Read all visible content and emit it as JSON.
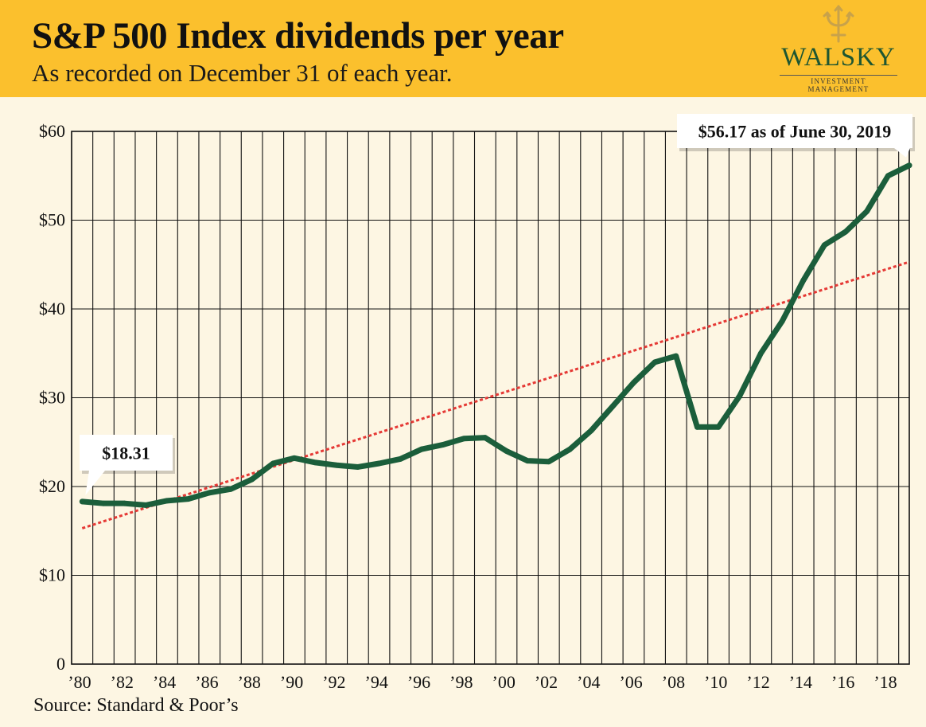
{
  "header": {
    "title": "S&P 500 Index dividends per year",
    "subtitle": "As recorded on December 31 of each year."
  },
  "logo": {
    "name": "WALSKY",
    "tagline": "INVESTMENT MANAGEMENT",
    "icon": "trident-icon"
  },
  "source": "Source: Standard & Poor’s",
  "colors": {
    "header_bg": "#fbc02d",
    "page_bg": "#fdf6e3",
    "line": "#1b5e3b",
    "trend": "#e53935"
  },
  "chart_data": {
    "type": "line",
    "title": "S&P 500 Index dividends per year",
    "subtitle": "As recorded on December 31 of each year.",
    "xlim": [
      1980,
      2019.5
    ],
    "ylim": [
      0,
      60
    ],
    "grid": true,
    "x_tick_values": [
      1980,
      1982,
      1984,
      1986,
      1988,
      1990,
      1992,
      1994,
      1996,
      1998,
      2000,
      2002,
      2004,
      2006,
      2008,
      2010,
      2012,
      2014,
      2016,
      2018
    ],
    "x_tick_labels": [
      "’80",
      "’82",
      "’84",
      "’86",
      "’88",
      "’90",
      "’92",
      "’94",
      "’96",
      "’98",
      "’00",
      "’02",
      "’04",
      "’06",
      "’08",
      "’10",
      "’12",
      "’14",
      "’16",
      "’18"
    ],
    "y_tick_values": [
      0,
      10,
      20,
      30,
      40,
      50,
      60
    ],
    "y_tick_labels": [
      "0",
      "$10",
      "$20",
      "$30",
      "$40",
      "$50",
      "$60"
    ],
    "series": [
      {
        "type": "line",
        "x": [
          1980.5,
          1981.5,
          1982.5,
          1983.5,
          1984.5,
          1985.5,
          1986.5,
          1987.5,
          1988.5,
          1989.5,
          1990.5,
          1991.5,
          1992.5,
          1993.5,
          1994.5,
          1995.5,
          1996.5,
          1997.5,
          1998.5,
          1999.5,
          2000.5,
          2001.5,
          2002.5,
          2003.5,
          2004.5,
          2005.5,
          2006.5,
          2007.5,
          2008.5,
          2009.5,
          2010.5,
          2011.5,
          2012.5,
          2013.5,
          2014.5,
          2015.5,
          2016.5,
          2017.5,
          2018.5,
          2019.5
        ],
        "values": [
          18.31,
          18.1,
          18.1,
          17.9,
          18.4,
          18.6,
          19.3,
          19.7,
          20.8,
          22.6,
          23.2,
          22.7,
          22.4,
          22.2,
          22.6,
          23.1,
          24.2,
          24.7,
          25.4,
          25.5,
          24.0,
          22.9,
          22.8,
          24.2,
          26.3,
          29.0,
          31.7,
          34.0,
          34.7,
          26.7,
          26.7,
          30.2,
          35.0,
          38.6,
          43.2,
          47.2,
          48.7,
          51.0,
          55.0,
          56.17
        ]
      },
      {
        "type": "trend",
        "x": [
          1980.5,
          2019.5
        ],
        "values": [
          15.3,
          45.3
        ]
      }
    ],
    "annotations": [
      {
        "text": "$18.31",
        "x": 1980.5,
        "y": 18.31
      },
      {
        "text": "$56.17 as of June 30, 2019",
        "x": 2019.5,
        "y": 56.17
      }
    ]
  }
}
